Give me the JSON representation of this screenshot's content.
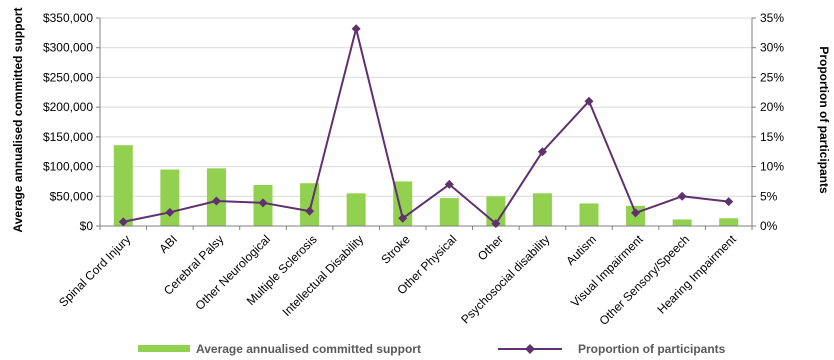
{
  "chart_data": {
    "type": "bar+line",
    "categories": [
      "Spinal Cord Injury",
      "ABI",
      "Cerebral Palsy",
      "Other Neurological",
      "Multiple Sclerosis",
      "Intellectual Disability",
      "Stroke",
      "Other Physical",
      "Other",
      "Psychosocial disability",
      "Autism",
      "Visual Impairment",
      "Other Sensory/Speech",
      "Hearing Impairment"
    ],
    "series": [
      {
        "name": "Average annualised committed support",
        "type": "bar",
        "axis": "left",
        "color": "#92d050",
        "values": [
          136000,
          95000,
          97000,
          69000,
          72000,
          55000,
          75000,
          47000,
          50000,
          55000,
          38000,
          34000,
          11000,
          13000
        ]
      },
      {
        "name": "Proportion of participants",
        "type": "line",
        "axis": "right",
        "color": "#60316e",
        "values": [
          0.7,
          2.3,
          4.2,
          3.9,
          2.5,
          33.2,
          1.3,
          7.0,
          0.4,
          12.5,
          21.0,
          2.2,
          5.0,
          4.1
        ]
      }
    ],
    "y_left": {
      "label": "Average annualised committed support",
      "range": [
        0,
        350000
      ],
      "ticks": [
        "$0",
        "$50,000",
        "$100,000",
        "$150,000",
        "$200,000",
        "$250,000",
        "$300,000",
        "$350,000"
      ]
    },
    "y_right": {
      "label": "Proportion of participants",
      "range": [
        0,
        35
      ],
      "ticks": [
        "0%",
        "5%",
        "10%",
        "15%",
        "20%",
        "25%",
        "30%",
        "35%"
      ]
    },
    "grid": true,
    "legend_position": "bottom"
  }
}
